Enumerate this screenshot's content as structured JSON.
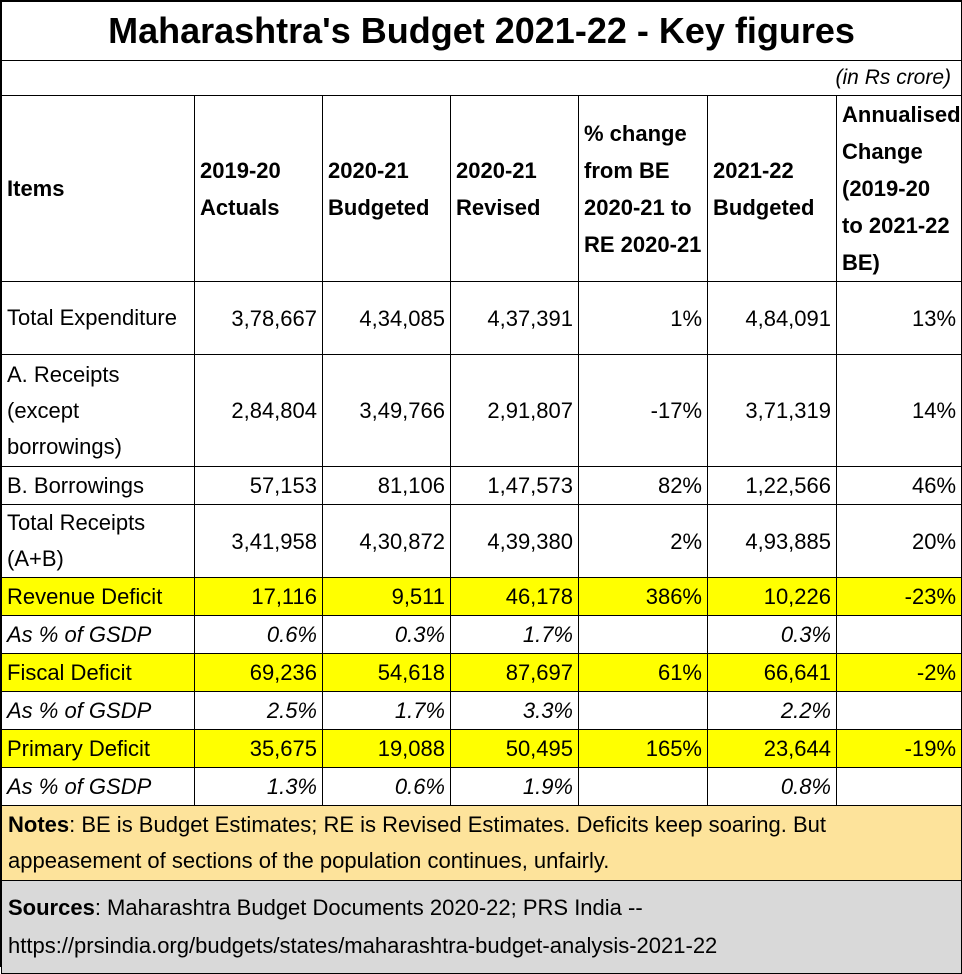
{
  "title": "Maharashtra's Budget 2021-22 - Key figures",
  "unit": "(in Rs crore)",
  "columns": [
    "Items",
    "2019-20 Actuals",
    "2020-21 Budgeted",
    "2020-21 Revised",
    "% change from BE 2020-21 to RE 2020-21",
    "2021-22 Budgeted",
    "Annualised Change (2019-20 to 2021-22 BE)"
  ],
  "rows": [
    {
      "item": "Total Expenditure",
      "cells": [
        "3,78,667",
        "4,34,085",
        "4,37,391",
        "1%",
        "4,84,091",
        "13%"
      ]
    },
    {
      "item": "A.  Receipts (except borrowings)",
      "cells": [
        "2,84,804",
        "3,49,766",
        "2,91,807",
        "-17%",
        "3,71,319",
        "14%"
      ]
    },
    {
      "item": "B.  Borrowings",
      "cells": [
        "57,153",
        "81,106",
        "1,47,573",
        "82%",
        "1,22,566",
        "46%"
      ]
    },
    {
      "item": "Total Receipts (A+B)",
      "cells": [
        "3,41,958",
        "4,30,872",
        "4,39,380",
        "2%",
        "4,93,885",
        "20%"
      ]
    },
    {
      "item": "Revenue Deficit",
      "cells": [
        "17,116",
        "9,511",
        "46,178",
        "386%",
        "10,226",
        "-23%"
      ]
    },
    {
      "item": "As % of GSDP",
      "cells": [
        "0.6%",
        "0.3%",
        "1.7%",
        "",
        "0.3%",
        ""
      ]
    },
    {
      "item": "Fiscal Deficit",
      "cells": [
        "69,236",
        "54,618",
        "87,697",
        "61%",
        "66,641",
        "-2%"
      ]
    },
    {
      "item": "As % of GSDP",
      "cells": [
        "2.5%",
        "1.7%",
        "3.3%",
        "",
        "2.2%",
        ""
      ]
    },
    {
      "item": "Primary Deficit",
      "cells": [
        "35,675",
        "19,088",
        "50,495",
        "165%",
        "23,644",
        "-19%"
      ]
    },
    {
      "item": "As % of GSDP",
      "cells": [
        "1.3%",
        "0.6%",
        "1.9%",
        "",
        "0.8%",
        ""
      ]
    }
  ],
  "notes": {
    "label": "Notes",
    "text": ": BE is Budget Estimates; RE is Revised Estimates.  Deficits keep soaring.  But appeasement of sections of the population continues, unfairly."
  },
  "sources": {
    "label": "Sources",
    "text": ": Maharashtra Budget Documents 2020-22; PRS India -- https://prsindia.org/budgets/states/maharashtra-budget-analysis-2021-22"
  },
  "colors": {
    "highlight": "#ffff00",
    "notes_bg": "#fde39b",
    "sources_bg": "#d9d9d9"
  }
}
